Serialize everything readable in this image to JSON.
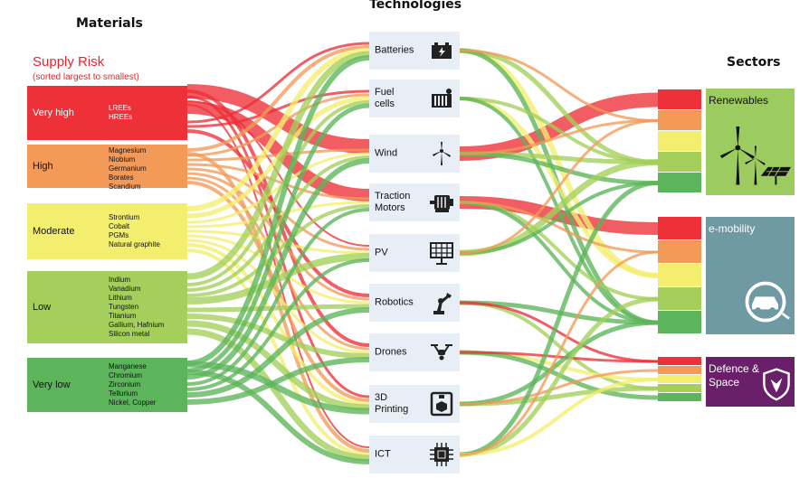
{
  "headers": {
    "materials": "Materials",
    "technologies": "Technologies",
    "sectors": "Sectors"
  },
  "supply_risk": {
    "title": "Supply Risk",
    "subtitle": "(sorted largest to smallest)"
  },
  "colors": {
    "very_high": "#ee3038",
    "high": "#f39a59",
    "moderate": "#f3ee6e",
    "low": "#a3cf5a",
    "very_low": "#5cb55a",
    "tech_box": "#e7eef5",
    "renewables": "#9ccc5f",
    "e_mobility": "#6f9aa3",
    "defence_space": "#6a1f6a"
  },
  "materials": [
    {
      "level": "Very high",
      "items": [
        "LREEs",
        "HREEs"
      ]
    },
    {
      "level": "High",
      "items": [
        "Magnesium",
        "Niobium",
        "Germanium",
        "Borates",
        "Scandium"
      ]
    },
    {
      "level": "Moderate",
      "items": [
        "Strontium",
        "Cobalt",
        "PGMs",
        "Natural graphite"
      ]
    },
    {
      "level": "Low",
      "items": [
        "Indium",
        "Vanadium",
        "Lithium",
        "Tungsten",
        "Titanium",
        "Gallium, Hafnium",
        "Silicon metal"
      ]
    },
    {
      "level": "Very low",
      "items": [
        "Manganese",
        "Chromium",
        "Zirconium",
        "Tellurium",
        "Nickel, Copper"
      ]
    }
  ],
  "technologies": [
    {
      "label": "Batteries",
      "icon": "battery-icon"
    },
    {
      "label": "Fuel\ncells",
      "icon": "fuel-cell-icon"
    },
    {
      "label": "Wind",
      "icon": "wind-turbine-icon"
    },
    {
      "label": "Traction\nMotors",
      "icon": "motor-icon"
    },
    {
      "label": "PV",
      "icon": "solar-panel-icon"
    },
    {
      "label": "Robotics",
      "icon": "robot-arm-icon"
    },
    {
      "label": "Drones",
      "icon": "drone-icon"
    },
    {
      "label": "3D\nPrinting",
      "icon": "3d-printer-icon"
    },
    {
      "label": "ICT",
      "icon": "chip-icon"
    }
  ],
  "sectors": [
    {
      "label": "Renewables",
      "icon": "wind-solar-icon"
    },
    {
      "label": "e-mobility",
      "icon": "electric-car-icon"
    },
    {
      "label": "Defence &\nSpace",
      "icon": "shield-eagle-icon"
    }
  ]
}
